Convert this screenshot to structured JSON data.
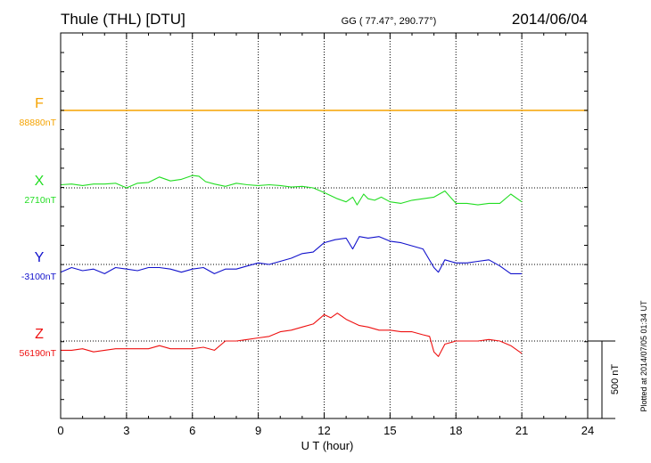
{
  "header": {
    "station": "Thule (THL)  [DTU]",
    "coords": "GG ( 77.47°, 290.77°)",
    "date": "2014/06/04"
  },
  "side_note": "Plotted at 2014/07/05 01:34 UT",
  "scale_bar_label": "500 nT",
  "chart_data": {
    "type": "line",
    "xlabel": "U T (hour)",
    "xlim": [
      0,
      24
    ],
    "xticks": [
      0,
      3,
      6,
      9,
      12,
      15,
      18,
      21,
      24
    ],
    "scale_bar_nT": 500,
    "series": [
      {
        "name": "F",
        "baseline_label": "88880nT",
        "color": "#f5a300",
        "x": [
          0,
          3,
          6,
          9,
          12,
          15,
          18,
          21,
          24
        ],
        "offset_nT": [
          0,
          0,
          0,
          0,
          0,
          0,
          0,
          0,
          0
        ]
      },
      {
        "name": "X",
        "baseline_label": "2710nT",
        "color": "#22dd22",
        "x": [
          0,
          0.5,
          1,
          1.5,
          2,
          2.5,
          3,
          3.5,
          4,
          4.5,
          5,
          5.5,
          6,
          6.3,
          6.6,
          7,
          7.5,
          8,
          8.5,
          9,
          9.5,
          10,
          10.5,
          11,
          11.5,
          12,
          12.3,
          12.6,
          13,
          13.3,
          13.5,
          13.8,
          14,
          14.3,
          14.6,
          15,
          15.5,
          16,
          16.5,
          17,
          17.5,
          18,
          18.5,
          19,
          19.5,
          20,
          20.5,
          21
        ],
        "offset_nT": [
          20,
          25,
          15,
          25,
          25,
          30,
          0,
          30,
          35,
          70,
          45,
          55,
          80,
          75,
          40,
          25,
          10,
          30,
          20,
          15,
          20,
          15,
          5,
          10,
          0,
          -30,
          -50,
          -70,
          -90,
          -60,
          -110,
          -40,
          -70,
          -80,
          -60,
          -90,
          -100,
          -80,
          -70,
          -60,
          -20,
          -100,
          -100,
          -110,
          -100,
          -100,
          -40,
          -90
        ]
      },
      {
        "name": "Y",
        "baseline_label": "-3100nT",
        "color": "#1111cc",
        "x": [
          0,
          0.5,
          1,
          1.5,
          2,
          2.5,
          3,
          3.5,
          4,
          4.5,
          5,
          5.5,
          6,
          6.5,
          7,
          7.5,
          8,
          8.5,
          9,
          9.5,
          10,
          10.5,
          11,
          11.5,
          12,
          12.5,
          13,
          13.3,
          13.6,
          14,
          14.5,
          15,
          15.5,
          16,
          16.5,
          17,
          17.2,
          17.5,
          18,
          18.5,
          19,
          19.5,
          20,
          20.5,
          21
        ],
        "offset_nT": [
          -50,
          -20,
          -40,
          -30,
          -60,
          -20,
          -30,
          -40,
          -20,
          -20,
          -30,
          -50,
          -30,
          -20,
          -60,
          -30,
          -30,
          -10,
          10,
          0,
          20,
          40,
          70,
          80,
          140,
          160,
          170,
          100,
          180,
          170,
          180,
          150,
          140,
          120,
          100,
          -20,
          -50,
          30,
          10,
          10,
          20,
          30,
          -10,
          -60,
          -60
        ]
      },
      {
        "name": "Z",
        "baseline_label": "56190nT",
        "color": "#ee1111",
        "x": [
          0,
          0.5,
          1,
          1.5,
          2,
          2.5,
          3,
          3.5,
          4,
          4.5,
          5,
          5.5,
          6,
          6.5,
          7,
          7.5,
          8,
          8.5,
          9,
          9.5,
          10,
          10.5,
          11,
          11.5,
          12,
          12.3,
          12.6,
          13,
          13.3,
          13.6,
          14,
          14.5,
          15,
          15.5,
          16,
          16.5,
          16.8,
          17,
          17.2,
          17.5,
          18,
          18.5,
          19,
          19.5,
          20,
          20.5,
          21
        ],
        "offset_nT": [
          -60,
          -60,
          -50,
          -70,
          -60,
          -50,
          -50,
          -50,
          -50,
          -30,
          -50,
          -50,
          -50,
          -40,
          -60,
          0,
          0,
          10,
          20,
          30,
          60,
          70,
          90,
          110,
          170,
          150,
          180,
          140,
          120,
          100,
          90,
          70,
          70,
          60,
          60,
          40,
          30,
          -70,
          -100,
          -20,
          0,
          0,
          0,
          10,
          0,
          -30,
          -80
        ]
      }
    ]
  }
}
